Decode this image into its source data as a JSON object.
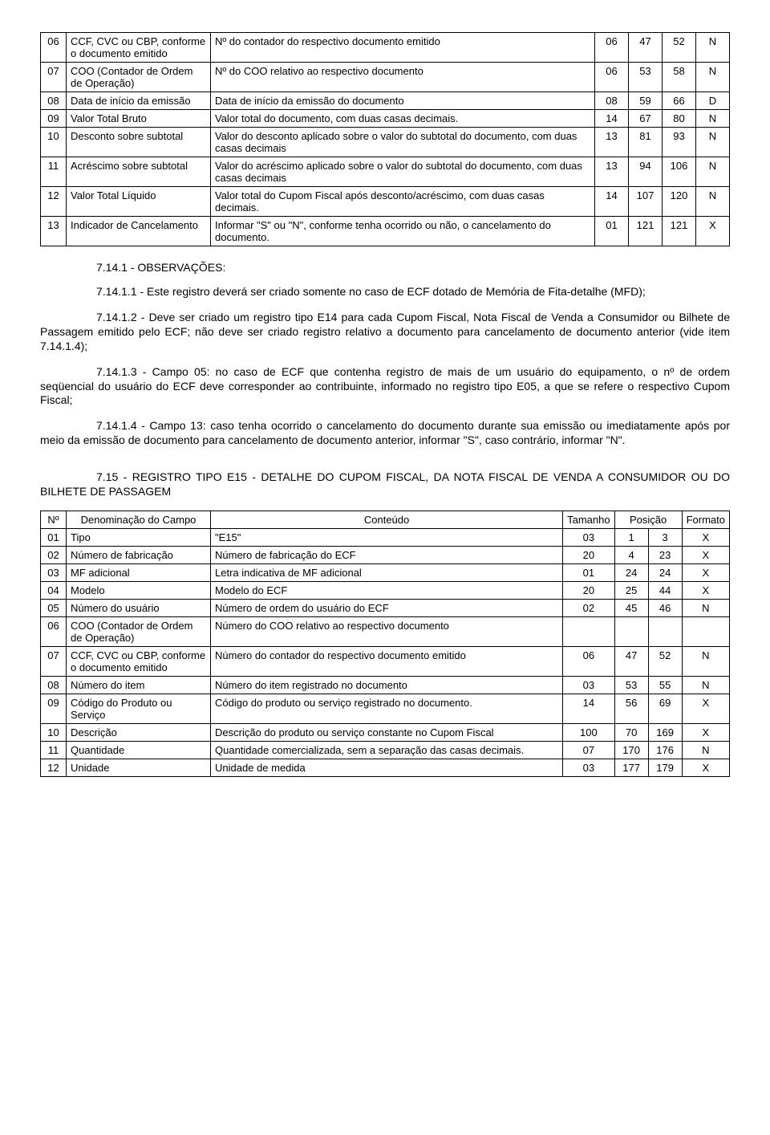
{
  "table1": {
    "rows": [
      {
        "n": "06",
        "name": "CCF, CVC ou CBP, conforme o documento emitido",
        "cont": "Nº do contador do respectivo documento emitido",
        "tam": "06",
        "p1": "47",
        "p2": "52",
        "fmt": "N"
      },
      {
        "n": "07",
        "name": "COO (Contador de Ordem de Operação)",
        "cont": "Nº do COO relativo ao respectivo documento",
        "tam": "06",
        "p1": "53",
        "p2": "58",
        "fmt": "N"
      },
      {
        "n": "08",
        "name": "Data de início da emissão",
        "cont": "Data de início da emissão do documento",
        "tam": "08",
        "p1": "59",
        "p2": "66",
        "fmt": "D"
      },
      {
        "n": "09",
        "name": "Valor Total Bruto",
        "cont": "Valor total do documento, com duas casas decimais.",
        "tam": "14",
        "p1": "67",
        "p2": "80",
        "fmt": "N"
      },
      {
        "n": "10",
        "name": "Desconto sobre subtotal",
        "cont": "Valor do desconto aplicado sobre o valor do subtotal do documento, com duas casas decimais",
        "tam": "13",
        "p1": "81",
        "p2": "93",
        "fmt": "N"
      },
      {
        "n": "11",
        "name": "Acréscimo sobre subtotal",
        "cont": "Valor do acréscimo aplicado sobre o valor do subtotal do documento, com duas casas decimais",
        "tam": "13",
        "p1": "94",
        "p2": "106",
        "fmt": "N"
      },
      {
        "n": "12",
        "name": "Valor Total Líquido",
        "cont": "Valor total do Cupom Fiscal após desconto/acréscimo, com duas casas decimais.",
        "tam": "14",
        "p1": "107",
        "p2": "120",
        "fmt": "N"
      },
      {
        "n": "13",
        "name": "Indicador de Cancelamento",
        "cont": "Informar \"S\" ou \"N\", conforme tenha ocorrido ou não, o cancelamento do documento.",
        "tam": "01",
        "p1": "121",
        "p2": "121",
        "fmt": "X"
      }
    ]
  },
  "obs_title": "7.14.1 - OBSERVAÇÕES:",
  "paras": {
    "p1": "7.14.1.1 - Este registro deverá ser criado somente no caso de ECF dotado de Memória de Fita-detalhe (MFD);",
    "p2": "7.14.1.2 - Deve ser criado um registro tipo E14 para cada Cupom Fiscal, Nota Fiscal de Venda a Consumidor ou Bilhete de Passagem emitido pelo ECF; não deve ser criado registro relativo a documento para cancelamento de documento anterior (vide item 7.14.1.4);",
    "p3": "7.14.1.3 - Campo 05: no caso de ECF que contenha registro de mais de um usuário do equipamento, o nº de ordem seqüencial do usuário do ECF deve corresponder ao contribuinte, informado no registro tipo E05, a que se refere o respectivo Cupom Fiscal;",
    "p4": "7.14.1.4 - Campo 13: caso tenha ocorrido o cancelamento do documento durante sua emissão ou imediatamente após por meio da emissão de documento para cancelamento de documento anterior, informar \"S\", caso contrário, informar \"N\"."
  },
  "sec_title": "7.15 - REGISTRO TIPO E15 - DETALHE DO CUPOM FISCAL, DA NOTA FISCAL DE VENDA A CONSUMIDOR OU DO BILHETE DE PASSAGEM",
  "table2": {
    "head": {
      "n": "Nº",
      "name": "Denominação do Campo",
      "cont": "Conteúdo",
      "tam": "Tamanho",
      "pos": "Posição",
      "fmt": "Formato"
    },
    "rows": [
      {
        "n": "01",
        "name": "Tipo",
        "cont": "\"E15\"",
        "tam": "03",
        "p1": "1",
        "p2": "3",
        "fmt": "X"
      },
      {
        "n": "02",
        "name": "Número de fabricação",
        "cont": "Número de fabricação do ECF",
        "tam": "20",
        "p1": "4",
        "p2": "23",
        "fmt": "X"
      },
      {
        "n": "03",
        "name": "MF adicional",
        "cont": "Letra indicativa de MF adicional",
        "tam": "01",
        "p1": "24",
        "p2": "24",
        "fmt": "X"
      },
      {
        "n": "04",
        "name": "Modelo",
        "cont": "Modelo do ECF",
        "tam": "20",
        "p1": "25",
        "p2": "44",
        "fmt": "X"
      },
      {
        "n": "05",
        "name": "Número do usuário",
        "cont": "Número de ordem do usuário do ECF",
        "tam": "02",
        "p1": "45",
        "p2": "46",
        "fmt": "N"
      },
      {
        "n": "06",
        "name": "COO (Contador de Ordem de Operação)",
        "cont": "Número do COO relativo ao respectivo documento",
        "tam": "",
        "p1": "",
        "p2": "",
        "fmt": ""
      },
      {
        "n": "07",
        "name": "CCF, CVC ou CBP, conforme o documento emitido",
        "cont": "Número do contador do respectivo documento emitido",
        "tam": "06",
        "p1": "47",
        "p2": "52",
        "fmt": "N"
      },
      {
        "n": "08",
        "name": "Número do item",
        "cont": "Número do item registrado no documento",
        "tam": "03",
        "p1": "53",
        "p2": "55",
        "fmt": "N"
      },
      {
        "n": "09",
        "name": "Código do Produto ou Serviço",
        "cont": "Código do produto ou serviço registrado no documento.",
        "tam": "14",
        "p1": "56",
        "p2": "69",
        "fmt": "X"
      },
      {
        "n": "10",
        "name": "Descrição",
        "cont": "Descrição do produto ou serviço constante no Cupom Fiscal",
        "tam": "100",
        "p1": "70",
        "p2": "169",
        "fmt": "X"
      },
      {
        "n": "11",
        "name": "Quantidade",
        "cont": "Quantidade comercializada, sem a separação das casas decimais.",
        "tam": "07",
        "p1": "170",
        "p2": "176",
        "fmt": "N"
      },
      {
        "n": "12",
        "name": "Unidade",
        "cont": "Unidade de medida",
        "tam": "03",
        "p1": "177",
        "p2": "179",
        "fmt": "X"
      }
    ]
  }
}
